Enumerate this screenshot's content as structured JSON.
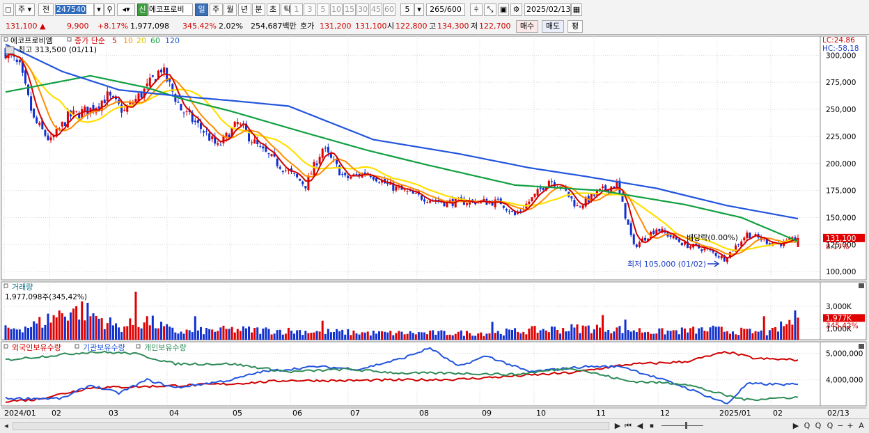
{
  "toolbar": {
    "mode_select": "주",
    "prev_label": "전",
    "stock_code": "247540",
    "stock_name": "에코프로비",
    "credit_badge": "신",
    "period_tabs": [
      "일",
      "주",
      "월",
      "년",
      "분",
      "초",
      "틱"
    ],
    "active_period": "일",
    "interval_buttons": [
      "1",
      "3",
      "5",
      "10",
      "15",
      "30",
      "45",
      "60"
    ],
    "interval_value": "5",
    "count_display": "265",
    "count_total": "/600",
    "date_value": "2025/02/13"
  },
  "quote": {
    "price": "131,100",
    "change": "9,900",
    "change_pct": "+8.17%",
    "volume": "1,977,098",
    "volume_ratio": "345.42%",
    "turnover_pct": "2.02%",
    "amount": "254,687백만",
    "bid_label": "호가",
    "bid1": "131,200",
    "bid2": "131,100",
    "open_label": "시",
    "open": "122,800",
    "high_label": "고",
    "high": "134,300",
    "low_label": "저",
    "low": "122,700",
    "buy_label": "매수",
    "sell_label": "매도",
    "eval_label": "평"
  },
  "colors": {
    "up": "#e00000",
    "down": "#1030d0",
    "ma5": "#d00000",
    "ma10": "#ff8c00",
    "ma20": "#ffe000",
    "ma60": "#10a040",
    "ma120": "#2255dd"
  },
  "chart_data": [
    {
      "type": "candlestick",
      "legend_name": "에코프로비엠",
      "legend_ma_title": "종가 단순",
      "ma_periods": [
        "5",
        "10",
        "20",
        "60",
        "120"
      ],
      "high_note": "최고 313,500 (01/11)",
      "low_note": "최저 105,000 (01/02)",
      "dividend_note": "배당락(0.00%)",
      "lc_label": "LC:24.86",
      "hc_label": "HC:-58.18",
      "last_price_label": "131,100",
      "last_pct_label": "8.17%",
      "y_ticks": [
        "300,000",
        "275,000",
        "250,000",
        "225,000",
        "200,000",
        "175,000",
        "150,000",
        "125,000",
        "100,000"
      ],
      "ylim": [
        95000,
        315000
      ],
      "anchors": {
        "close": [
          [
            0,
            304000
          ],
          [
            5,
            288000
          ],
          [
            10,
            240000
          ],
          [
            16,
            220000
          ],
          [
            22,
            243000
          ],
          [
            30,
            250000
          ],
          [
            36,
            262000
          ],
          [
            42,
            248000
          ],
          [
            50,
            270000
          ],
          [
            55,
            288000
          ],
          [
            62,
            250000
          ],
          [
            70,
            230000
          ],
          [
            75,
            215000
          ],
          [
            82,
            237000
          ],
          [
            90,
            213000
          ],
          [
            98,
            196000
          ],
          [
            106,
            180000
          ],
          [
            112,
            214000
          ],
          [
            120,
            186000
          ],
          [
            128,
            192000
          ],
          [
            135,
            180000
          ],
          [
            145,
            170000
          ],
          [
            155,
            164000
          ],
          [
            165,
            165000
          ],
          [
            175,
            164000
          ],
          [
            180,
            152000
          ],
          [
            187,
            170000
          ],
          [
            192,
            185000
          ],
          [
            196,
            180000
          ],
          [
            202,
            160000
          ],
          [
            210,
            174000
          ],
          [
            216,
            181000
          ],
          [
            222,
            123000
          ],
          [
            230,
            140000
          ],
          [
            240,
            125000
          ],
          [
            248,
            120000
          ],
          [
            254,
            112000
          ],
          [
            262,
            135000
          ],
          [
            270,
            127000
          ],
          [
            275,
            126000
          ],
          [
            280,
            131100
          ]
        ],
        "ma60": [
          [
            0,
            266000
          ],
          [
            30,
            281000
          ],
          [
            50,
            270000
          ],
          [
            62,
            260000
          ],
          [
            80,
            248000
          ],
          [
            105,
            229000
          ],
          [
            128,
            212000
          ],
          [
            150,
            198000
          ],
          [
            180,
            180000
          ],
          [
            210,
            175000
          ],
          [
            240,
            162000
          ],
          [
            260,
            150000
          ],
          [
            280,
            128000
          ]
        ],
        "ma120": [
          [
            0,
            310000
          ],
          [
            20,
            285000
          ],
          [
            40,
            268000
          ],
          [
            62,
            262000
          ],
          [
            80,
            258000
          ],
          [
            100,
            253000
          ],
          [
            130,
            222000
          ],
          [
            160,
            209000
          ],
          [
            185,
            196000
          ],
          [
            205,
            188000
          ],
          [
            230,
            177000
          ],
          [
            255,
            161000
          ],
          [
            280,
            149000
          ]
        ]
      }
    },
    {
      "type": "bar",
      "legend_name": "거래량",
      "volume_label": "1,977,098주(345,42%)",
      "y_ticks": [
        "3,000K",
        "1,000K"
      ],
      "last_label": "1,977K",
      "last_pct_label": "345.42%",
      "ylim": [
        0,
        4300000
      ],
      "anchors": [
        [
          0,
          900000
        ],
        [
          10,
          1300000
        ],
        [
          25,
          2900000
        ],
        [
          40,
          1100000
        ],
        [
          50,
          1700000
        ],
        [
          60,
          700000
        ],
        [
          80,
          900000
        ],
        [
          100,
          800000
        ],
        [
          130,
          600000
        ],
        [
          150,
          600000
        ],
        [
          170,
          600000
        ],
        [
          190,
          900000
        ],
        [
          210,
          1100000
        ],
        [
          230,
          700000
        ],
        [
          250,
          900000
        ],
        [
          270,
          600000
        ],
        [
          280,
          1977098
        ]
      ],
      "spikes": [
        [
          25,
          3000000
        ],
        [
          46,
          4300000
        ],
        [
          67,
          2100000
        ],
        [
          112,
          1700000
        ],
        [
          172,
          1600000
        ],
        [
          211,
          2200000
        ],
        [
          219,
          1800000
        ],
        [
          268,
          2100000
        ]
      ]
    },
    {
      "type": "line",
      "series": [
        {
          "name": "외국인보유수량",
          "anchors": [
            [
              0,
              3200000
            ],
            [
              10,
              3250000
            ],
            [
              30,
              3700000
            ],
            [
              50,
              3750000
            ],
            [
              80,
              3850000
            ],
            [
              100,
              3980000
            ],
            [
              120,
              3970000
            ],
            [
              160,
              4020000
            ],
            [
              200,
              4270000
            ],
            [
              220,
              4580000
            ],
            [
              240,
              4680000
            ],
            [
              255,
              5050000
            ],
            [
              265,
              4800000
            ],
            [
              280,
              4750000
            ]
          ]
        },
        {
          "name": "기관보유수량",
          "anchors": [
            [
              0,
              3300000
            ],
            [
              20,
              3300000
            ],
            [
              30,
              3800000
            ],
            [
              40,
              3500000
            ],
            [
              50,
              4000000
            ],
            [
              60,
              3700000
            ],
            [
              80,
              4000000
            ],
            [
              90,
              4300000
            ],
            [
              110,
              4500000
            ],
            [
              125,
              4400000
            ],
            [
              140,
              4800000
            ],
            [
              150,
              5200000
            ],
            [
              160,
              4500000
            ],
            [
              170,
              4900000
            ],
            [
              185,
              4300000
            ],
            [
              205,
              4500000
            ],
            [
              218,
              4500000
            ],
            [
              238,
              3800000
            ],
            [
              255,
              3100000
            ],
            [
              262,
              3850000
            ],
            [
              280,
              3820000
            ]
          ]
        },
        {
          "name": "개인보유수량",
          "anchors": [
            [
              0,
              4750000
            ],
            [
              30,
              5050000
            ],
            [
              45,
              5000000
            ],
            [
              60,
              4600000
            ],
            [
              80,
              4600000
            ],
            [
              100,
              4300000
            ],
            [
              120,
              4400000
            ],
            [
              140,
              4250000
            ],
            [
              160,
              4250000
            ],
            [
              180,
              4200000
            ],
            [
              200,
              4450000
            ],
            [
              220,
              3950000
            ],
            [
              240,
              3850000
            ],
            [
              255,
              3400000
            ],
            [
              262,
              3250000
            ],
            [
              270,
              3300000
            ],
            [
              280,
              3350000
            ]
          ]
        }
      ],
      "y_ticks": [
        "5,000,000",
        "4,000,000"
      ],
      "ylim": [
        3100000,
        5300000
      ]
    }
  ],
  "x_axis": {
    "labels": [
      "2024/01",
      "02",
      "03",
      "04",
      "05",
      "06",
      "07",
      "08",
      "09",
      "10",
      "11",
      "12",
      "2025/01",
      "02",
      "02/13"
    ]
  },
  "scroll_buttons": [
    "▶",
    "⏮",
    "◀",
    "⏹",
    "▶",
    "Q",
    "Q",
    "Q",
    "−",
    "+",
    "A"
  ]
}
